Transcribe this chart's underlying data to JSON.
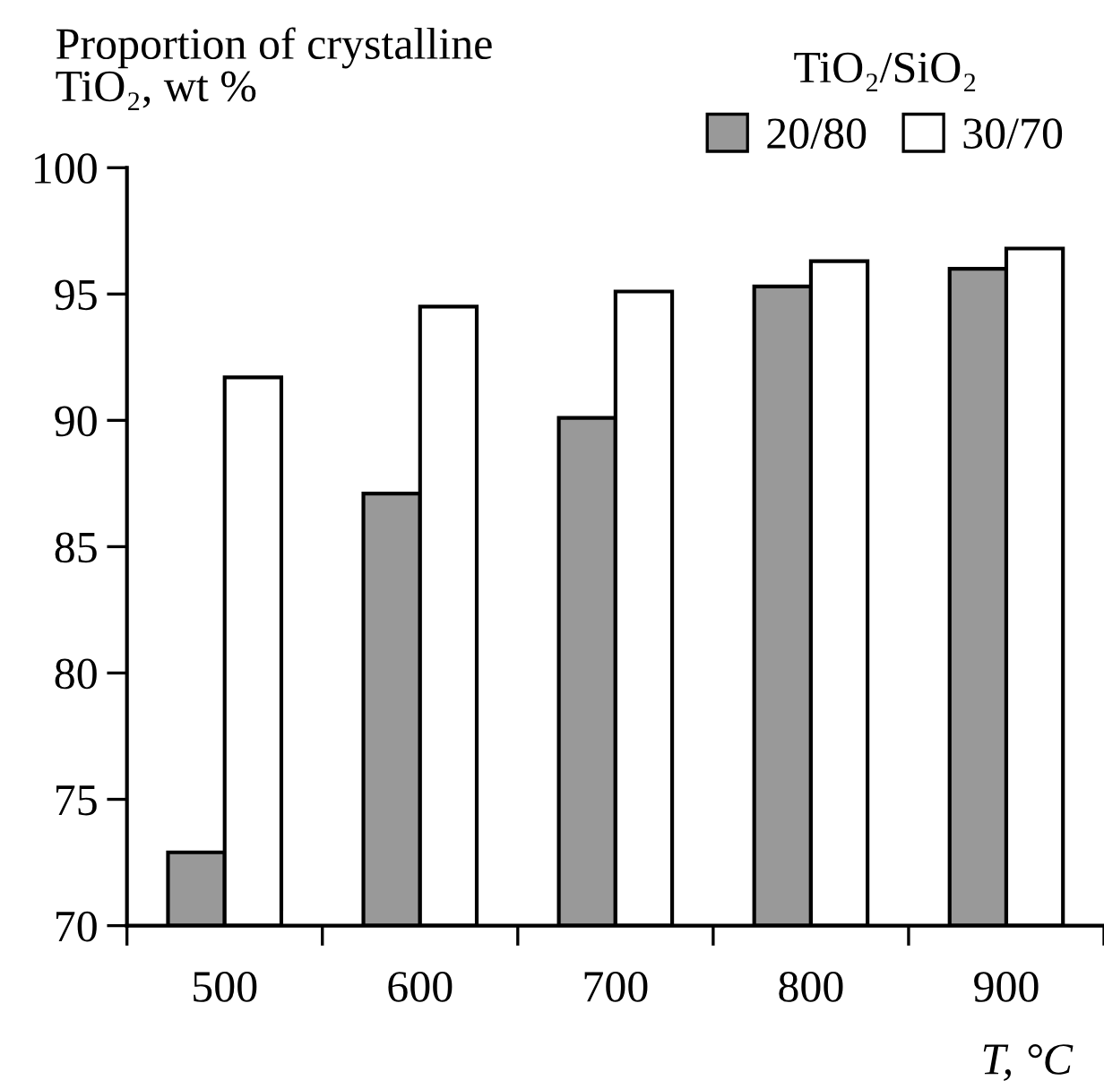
{
  "chart_data": {
    "type": "bar",
    "ylabel": "Proportion of crystalline\nTiO₂, wt %",
    "xlabel": "T, °C",
    "legend_title": "TiO₂/SiO₂",
    "legend": "top right",
    "categories": [
      "500",
      "600",
      "700",
      "800",
      "900"
    ],
    "series": [
      {
        "name": "20/80",
        "color": "#999999",
        "values": [
          72.9,
          87.1,
          90.1,
          95.3,
          96.0
        ]
      },
      {
        "name": "30/70",
        "color": "#ffffff",
        "values": [
          91.7,
          94.5,
          95.1,
          96.3,
          96.8
        ]
      }
    ],
    "ylim": [
      70,
      100
    ],
    "yticks": [
      70,
      75,
      80,
      85,
      90,
      95,
      100
    ],
    "grid": false
  }
}
